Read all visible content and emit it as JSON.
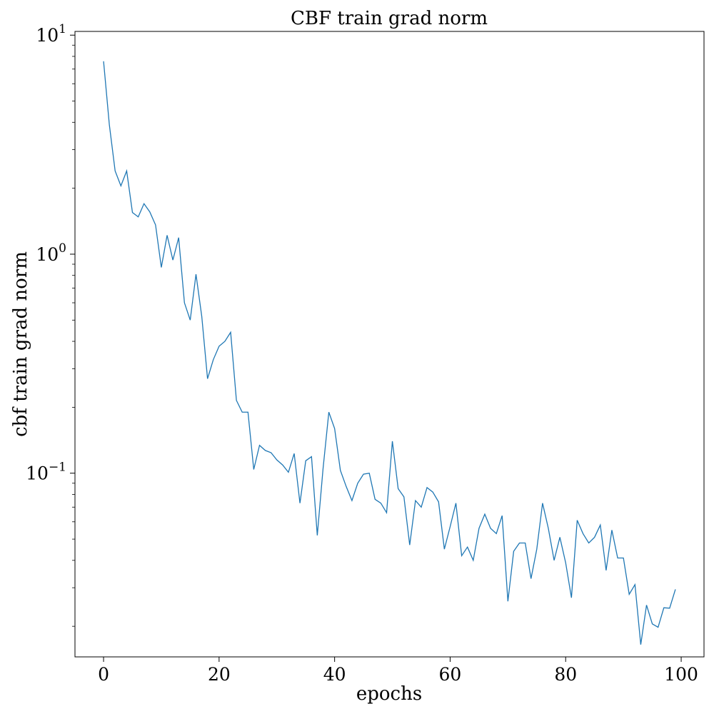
{
  "chart_data": {
    "type": "line",
    "title": "CBF train grad norm",
    "xlabel": "epochs",
    "ylabel": "cbf train grad norm",
    "yscale": "log",
    "xlim": [
      -4.95,
      103.95
    ],
    "ylim": [
      0.0145,
      10.4
    ],
    "xticks": [
      0,
      20,
      40,
      60,
      80,
      100
    ],
    "xtick_labels": [
      "0",
      "20",
      "40",
      "60",
      "80",
      "100"
    ],
    "yticks": [
      {
        "value": 0.1,
        "base": "10",
        "exp": "−1"
      },
      {
        "value": 1,
        "base": "10",
        "exp": "0"
      },
      {
        "value": 10,
        "base": "10",
        "exp": "1"
      }
    ],
    "grid": false,
    "line_color": "#1f77b4",
    "series": [
      {
        "x": [
          0,
          1,
          2,
          3,
          4,
          5,
          6,
          7,
          8,
          9,
          10,
          11,
          12,
          13,
          14,
          15,
          16,
          17,
          18,
          19,
          20,
          21,
          22,
          23,
          24,
          25,
          26,
          27,
          28,
          29,
          30,
          31,
          32,
          33,
          34,
          35,
          36,
          37,
          38,
          39,
          40,
          41,
          42,
          43,
          44,
          45,
          46,
          47,
          48,
          49,
          50,
          51,
          52,
          53,
          54,
          55,
          56,
          57,
          58,
          59,
          60,
          61,
          62,
          63,
          64,
          65,
          66,
          67,
          68,
          69,
          70,
          71,
          72,
          73,
          74,
          75,
          76,
          77,
          78,
          79,
          80,
          81,
          82,
          83,
          84,
          85,
          86,
          87,
          88,
          89,
          90,
          91,
          92,
          93,
          94,
          95,
          96,
          97,
          98,
          99
        ],
        "values": [
          7.6,
          3.9,
          2.4,
          2.05,
          2.4,
          1.55,
          1.48,
          1.7,
          1.56,
          1.36,
          0.87,
          1.22,
          0.94,
          1.19,
          0.6,
          0.5,
          0.81,
          0.52,
          0.27,
          0.33,
          0.38,
          0.4,
          0.44,
          0.215,
          0.19,
          0.19,
          0.104,
          0.134,
          0.127,
          0.124,
          0.115,
          0.109,
          0.101,
          0.123,
          0.073,
          0.114,
          0.119,
          0.052,
          0.105,
          0.19,
          0.16,
          0.103,
          0.087,
          0.075,
          0.09,
          0.099,
          0.1,
          0.076,
          0.073,
          0.066,
          0.14,
          0.085,
          0.078,
          0.047,
          0.075,
          0.07,
          0.086,
          0.082,
          0.074,
          0.045,
          0.057,
          0.073,
          0.042,
          0.046,
          0.04,
          0.056,
          0.065,
          0.056,
          0.053,
          0.064,
          0.026,
          0.044,
          0.048,
          0.048,
          0.033,
          0.045,
          0.073,
          0.056,
          0.04,
          0.051,
          0.039,
          0.027,
          0.061,
          0.053,
          0.048,
          0.051,
          0.058,
          0.036,
          0.055,
          0.041,
          0.041,
          0.028,
          0.031,
          0.0165,
          0.025,
          0.0205,
          0.0198,
          0.0243,
          0.0242,
          0.0295
        ]
      }
    ]
  }
}
